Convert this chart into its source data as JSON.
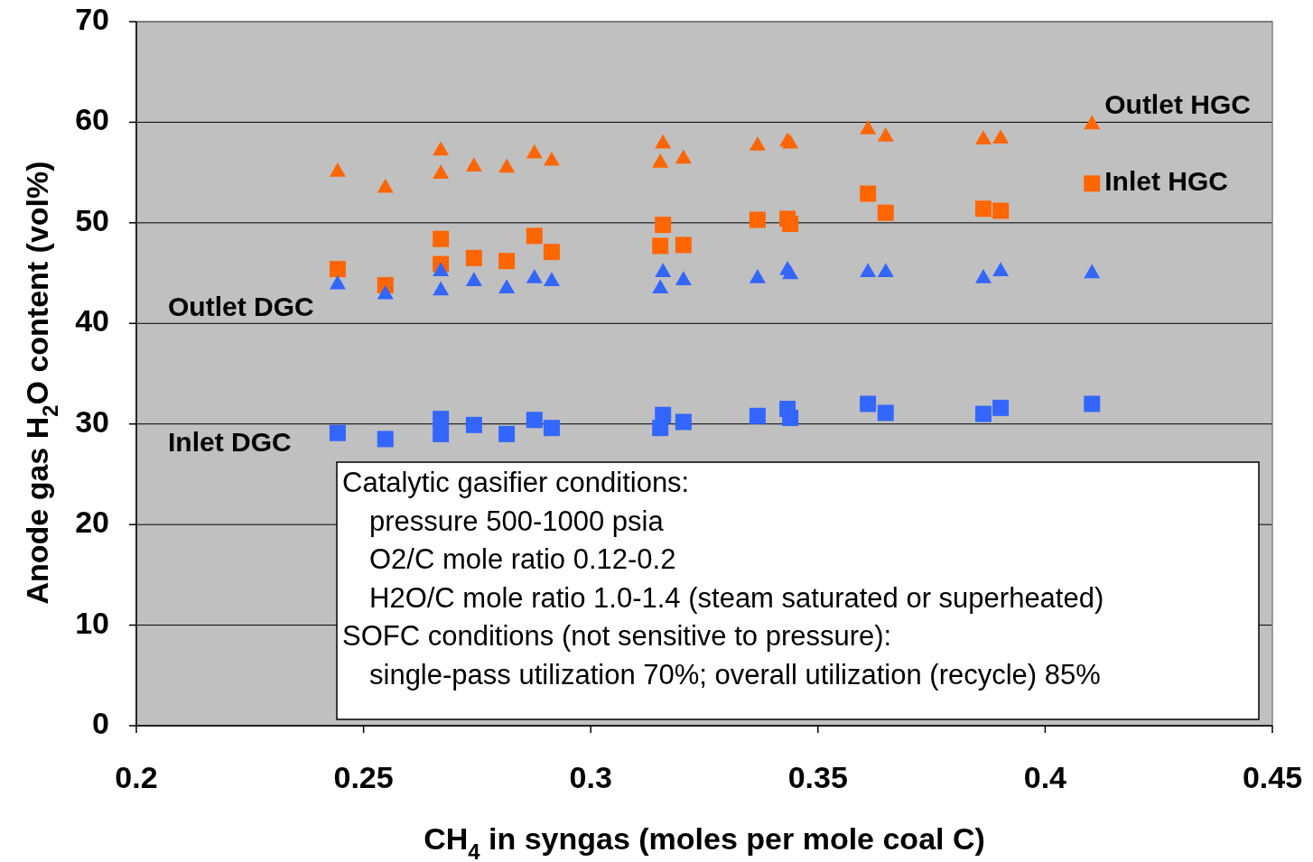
{
  "chart_data": {
    "type": "scatter",
    "xlabel": "CH$_{4}$ in syngas (moles per mole coal C)",
    "ylabel": "Anode gas H$_{2}$O content (vol%)",
    "xlim": [
      0.2,
      0.45
    ],
    "xticks": [
      0.2,
      0.25,
      0.3,
      0.35,
      0.4,
      0.45
    ],
    "ylim": [
      0,
      70
    ],
    "yticks": [
      0,
      10,
      20,
      30,
      40,
      50,
      60,
      70
    ],
    "grid": "y",
    "x": [
      0.2443,
      0.2548,
      0.267,
      0.267,
      0.2743,
      0.2815,
      0.2876,
      0.2914,
      0.3153,
      0.3159,
      0.3204,
      0.3367,
      0.3433,
      0.3439,
      0.361,
      0.3649,
      0.3864,
      0.3902,
      0.4103
    ],
    "series": [
      {
        "name": "Outlet HGC",
        "color": "#ff6600",
        "marker": "triangle",
        "values": [
          55.2,
          53.6,
          57.3,
          55.0,
          55.7,
          55.6,
          57.0,
          56.3,
          56.1,
          58.0,
          56.5,
          57.8,
          58.2,
          58.0,
          59.4,
          58.7,
          58.4,
          58.5,
          59.9
        ]
      },
      {
        "name": "Inlet HGC",
        "color": "#ff6600",
        "marker": "square",
        "values": [
          45.4,
          43.8,
          48.4,
          45.9,
          46.5,
          46.2,
          48.7,
          47.1,
          47.7,
          49.8,
          47.8,
          50.3,
          50.4,
          49.9,
          52.9,
          51.0,
          51.4,
          51.2,
          53.9
        ]
      },
      {
        "name": "Outlet DGC",
        "color": "#3366ff",
        "marker": "triangle",
        "values": [
          44.0,
          43.0,
          45.3,
          43.4,
          44.3,
          43.6,
          44.6,
          44.3,
          43.6,
          45.2,
          44.4,
          44.6,
          45.4,
          45.0,
          45.2,
          45.2,
          44.6,
          45.3,
          45.1
        ]
      },
      {
        "name": "Inlet DGC",
        "color": "#3366ff",
        "marker": "square",
        "values": [
          29.1,
          28.5,
          30.5,
          29.0,
          29.9,
          29.0,
          30.4,
          29.6,
          29.6,
          30.9,
          30.2,
          30.8,
          31.5,
          30.6,
          32.0,
          31.1,
          31.0,
          31.6,
          32.0
        ]
      }
    ],
    "annotations": [
      "Catalytic gasifier conditions:",
      "   pressure 500-1000 psia",
      "   O2/C mole ratio 0.12-0.2",
      "   H2O/C mole ratio 1.0-1.4 (steam saturated or superheated)",
      "SOFC conditions (not sensitive to pressure):",
      "   single-pass utilization 70%; overall utilization (recycle) 85%"
    ]
  }
}
